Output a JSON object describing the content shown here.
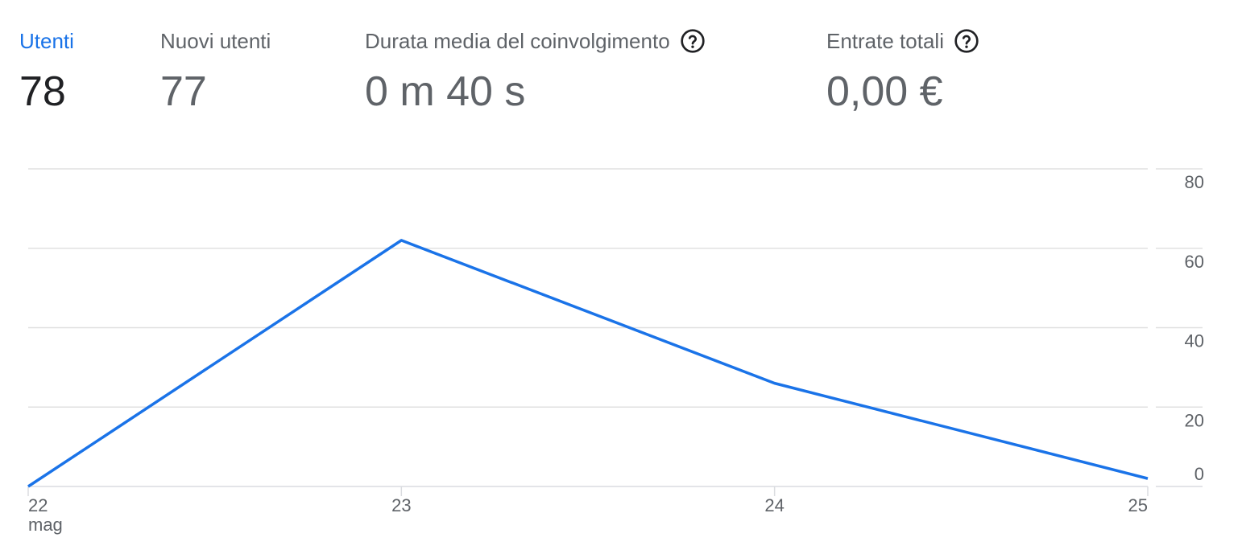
{
  "metrics": [
    {
      "label": "Utenti",
      "value": "78",
      "active": true,
      "help": false
    },
    {
      "label": "Nuovi utenti",
      "value": "77",
      "active": false,
      "help": false
    },
    {
      "label": "Durata media del coinvolgimento",
      "value": "0 m 40 s",
      "active": false,
      "help": true
    },
    {
      "label": "Entrate totali",
      "value": "0,00 €",
      "active": false,
      "help": true
    }
  ],
  "icons": {
    "help": "help-circle-icon"
  },
  "colors": {
    "accent": "#1a73e8",
    "text": "#5f6368",
    "active_value": "#202124",
    "grid": "#e0e0e0"
  },
  "chart_data": {
    "type": "line",
    "x": [
      "22",
      "23",
      "24",
      "25"
    ],
    "x_sublabels": [
      "mag",
      "",
      "",
      ""
    ],
    "series": [
      {
        "values": [
          0,
          62,
          26,
          2
        ]
      }
    ],
    "yticks": [
      0,
      20,
      40,
      60,
      80
    ],
    "ylim": [
      0,
      80
    ],
    "grid": true,
    "y_axis_side": "right"
  }
}
